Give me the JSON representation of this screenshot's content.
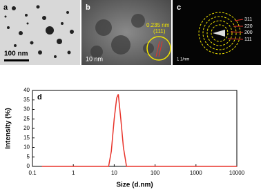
{
  "panels": {
    "a": {
      "label": "a",
      "scale_bar": "100 nm"
    },
    "b": {
      "label": "b",
      "scale_bar": "10 nm",
      "spacing": "0.235 nm",
      "plane": "(111)"
    },
    "c": {
      "label": "c",
      "rings": [
        "311",
        "220",
        "200",
        "111"
      ],
      "scale_bar": "1 1/nm"
    },
    "d": {
      "label": "d"
    }
  },
  "chart_data": {
    "type": "line",
    "x_label": "Size (d.nm)",
    "y_label": "Intensity (%)",
    "x": [
      0.17,
      7.3,
      8.5,
      10,
      11.5,
      12.6,
      14.5,
      16.8,
      20,
      10000
    ],
    "values": [
      0,
      0,
      8,
      25,
      36,
      38,
      25,
      10,
      0,
      0
    ],
    "color": "#e8332a",
    "x_scale": "log",
    "xlim": [
      0.1,
      10000
    ],
    "xticks": [
      0.1,
      1,
      10,
      100,
      1000,
      10000
    ],
    "ylim": [
      0,
      40
    ],
    "yticks": [
      0,
      5,
      10,
      15,
      20,
      25,
      30,
      35,
      40
    ]
  }
}
